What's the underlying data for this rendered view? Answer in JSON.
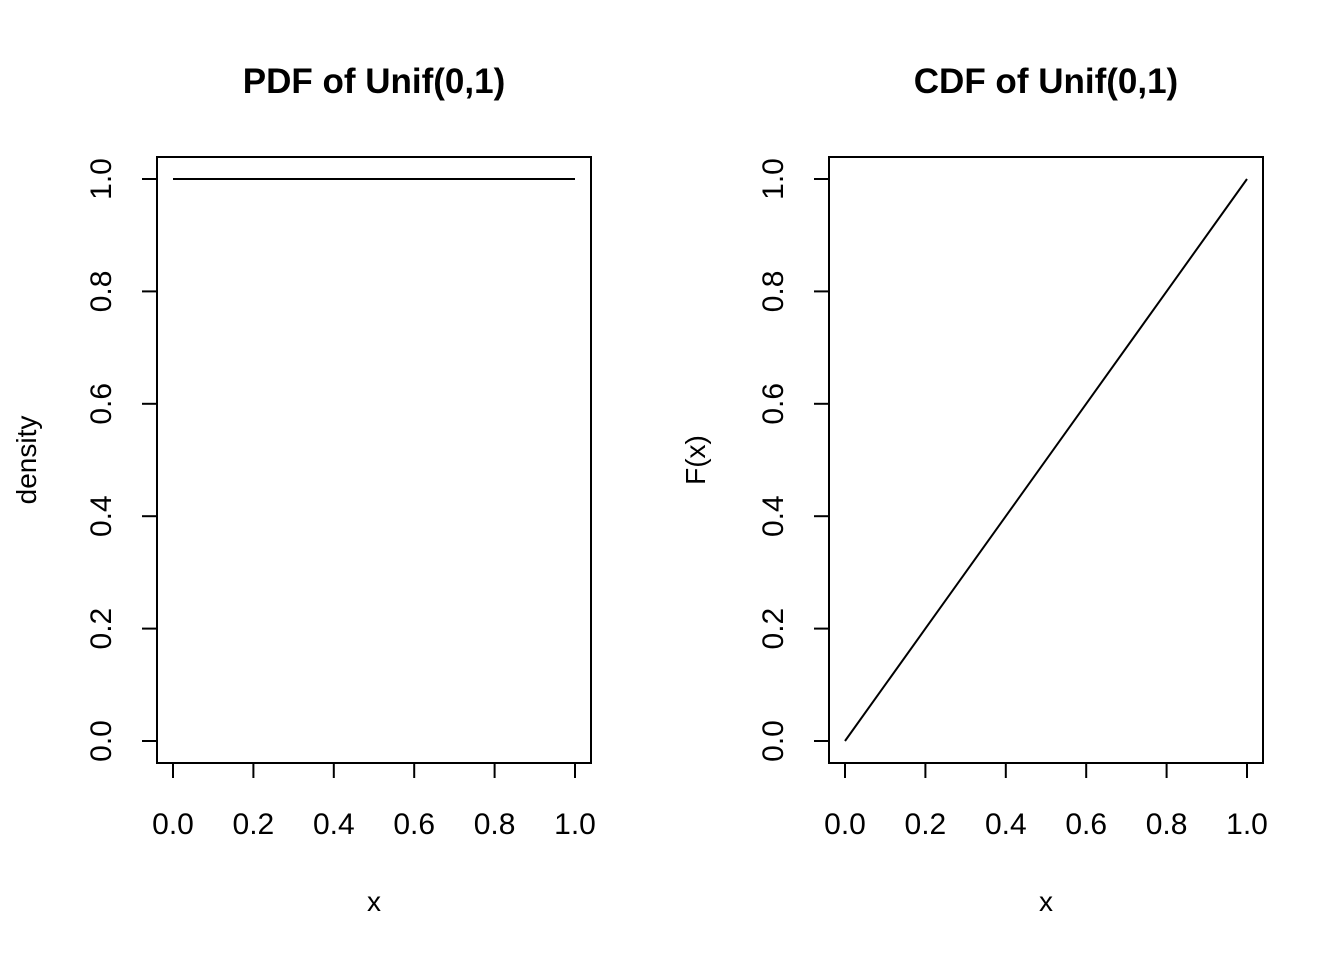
{
  "chart_data": [
    {
      "type": "line",
      "title": "PDF of Unif(0,1)",
      "xlabel": "x",
      "ylabel": "density",
      "xlim": [
        0,
        1
      ],
      "ylim": [
        0,
        1
      ],
      "x_ticks": [
        "0.0",
        "0.2",
        "0.4",
        "0.6",
        "0.8",
        "1.0"
      ],
      "y_ticks": [
        "0.0",
        "0.2",
        "0.4",
        "0.6",
        "0.8",
        "1.0"
      ],
      "grid": false,
      "series": [
        {
          "x": [
            0,
            1
          ],
          "values": [
            1,
            1
          ]
        }
      ]
    },
    {
      "type": "line",
      "title": "CDF of Unif(0,1)",
      "xlabel": "x",
      "ylabel": "F(x)",
      "xlim": [
        0,
        1
      ],
      "ylim": [
        0,
        1
      ],
      "x_ticks": [
        "0.0",
        "0.2",
        "0.4",
        "0.6",
        "0.8",
        "1.0"
      ],
      "y_ticks": [
        "0.0",
        "0.2",
        "0.4",
        "0.6",
        "0.8",
        "1.0"
      ],
      "grid": false,
      "series": [
        {
          "x": [
            0,
            0.2,
            0.4,
            0.6,
            0.8,
            1
          ],
          "values": [
            0,
            0.2,
            0.4,
            0.6,
            0.8,
            1
          ]
        }
      ]
    }
  ]
}
